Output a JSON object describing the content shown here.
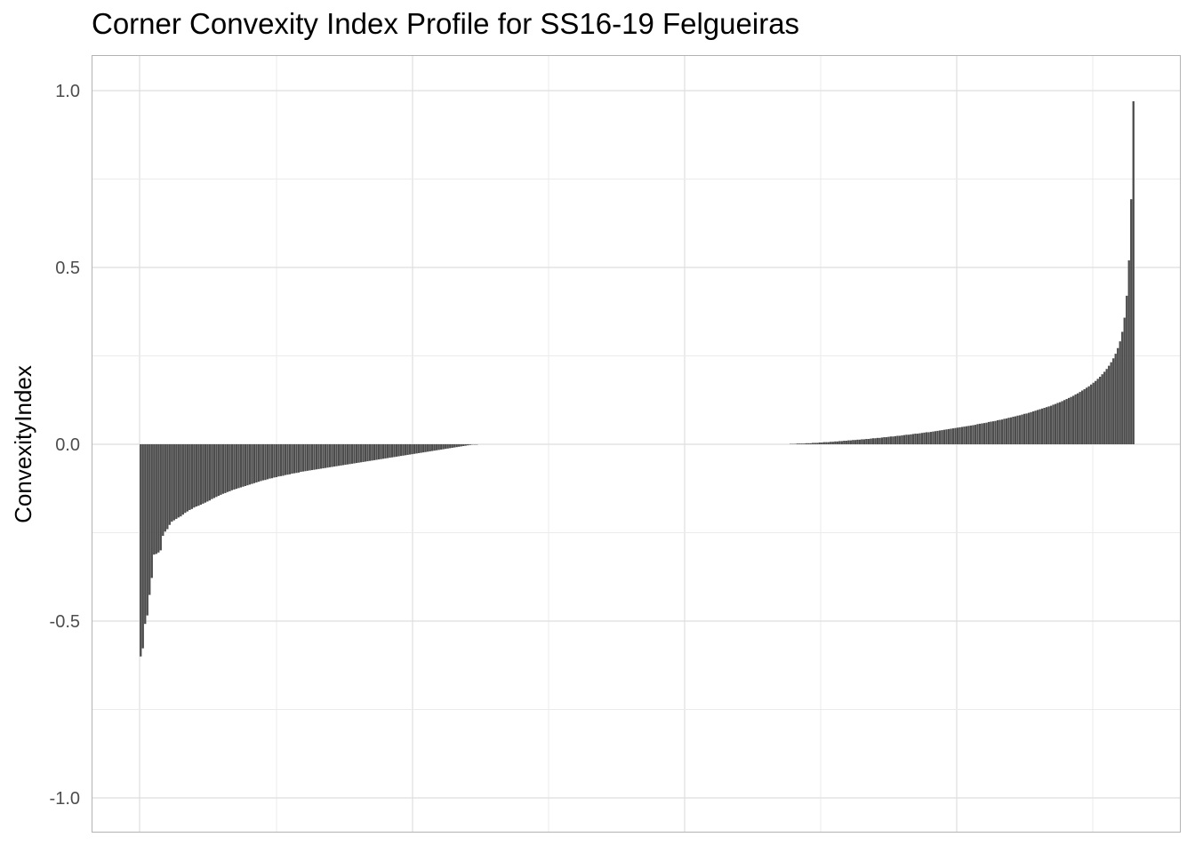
{
  "chart_data": {
    "type": "bar",
    "title": "Corner Convexity Index Profile for SS16-19 Felgueiras",
    "xlabel": "",
    "ylabel": "ConvexityIndex",
    "ylim": [
      -1.1,
      1.1
    ],
    "y_ticks": [
      -1.0,
      -0.5,
      0.0,
      0.5,
      1.0
    ],
    "y_tick_labels": [
      "-1.0",
      "-0.5",
      "0.0",
      "0.5",
      "1.0"
    ],
    "x_tick_labels": [],
    "grid": true,
    "bar_color": "#4d4d4d",
    "n_bars": 466,
    "values": [
      -0.6,
      -0.577,
      -0.508,
      -0.484,
      -0.426,
      -0.378,
      -0.312,
      -0.31,
      -0.306,
      -0.3,
      -0.259,
      -0.247,
      -0.24,
      -0.228,
      -0.219,
      -0.215,
      -0.211,
      -0.207,
      -0.204,
      -0.199,
      -0.194,
      -0.19,
      -0.186,
      -0.183,
      -0.179,
      -0.176,
      -0.174,
      -0.171,
      -0.168,
      -0.165,
      -0.162,
      -0.159,
      -0.155,
      -0.152,
      -0.149,
      -0.146,
      -0.143,
      -0.14,
      -0.138,
      -0.135,
      -0.133,
      -0.13,
      -0.128,
      -0.126,
      -0.124,
      -0.122,
      -0.12,
      -0.118,
      -0.116,
      -0.114,
      -0.112,
      -0.11,
      -0.108,
      -0.106,
      -0.104,
      -0.102,
      -0.101,
      -0.099,
      -0.097,
      -0.096,
      -0.094,
      -0.093,
      -0.091,
      -0.09,
      -0.089,
      -0.087,
      -0.086,
      -0.085,
      -0.083,
      -0.082,
      -0.081,
      -0.08,
      -0.078,
      -0.077,
      -0.076,
      -0.075,
      -0.074,
      -0.073,
      -0.072,
      -0.071,
      -0.07,
      -0.069,
      -0.068,
      -0.067,
      -0.066,
      -0.065,
      -0.064,
      -0.063,
      -0.062,
      -0.061,
      -0.06,
      -0.059,
      -0.058,
      -0.057,
      -0.056,
      -0.055,
      -0.054,
      -0.053,
      -0.052,
      -0.051,
      -0.05,
      -0.049,
      -0.048,
      -0.047,
      -0.046,
      -0.045,
      -0.044,
      -0.043,
      -0.042,
      -0.041,
      -0.04,
      -0.039,
      -0.038,
      -0.037,
      -0.036,
      -0.035,
      -0.034,
      -0.033,
      -0.032,
      -0.031,
      -0.03,
      -0.029,
      -0.028,
      -0.027,
      -0.026,
      -0.025,
      -0.024,
      -0.023,
      -0.022,
      -0.021,
      -0.02,
      -0.019,
      -0.018,
      -0.017,
      -0.016,
      -0.015,
      -0.014,
      -0.013,
      -0.012,
      -0.011,
      -0.01,
      -0.009,
      -0.008,
      -0.007,
      -0.006,
      -0.005,
      -0.004,
      -0.003,
      -0.002,
      -0.001,
      -0.001,
      -0.001,
      0,
      0,
      0,
      0,
      0,
      0,
      0,
      0,
      0,
      0,
      0,
      0,
      0,
      0,
      0,
      0,
      0,
      0,
      0,
      0,
      0,
      0,
      0,
      0,
      0,
      0,
      0,
      0,
      0,
      0,
      0,
      0,
      0,
      0,
      0,
      0,
      0,
      0,
      0,
      0,
      0,
      0,
      0,
      0,
      0,
      0,
      0,
      0,
      0,
      0,
      0,
      0,
      0,
      0,
      0,
      0,
      0,
      0,
      0,
      0,
      0,
      0,
      0,
      0,
      0,
      0,
      0,
      0,
      0,
      0,
      0,
      0,
      0,
      0,
      0,
      0,
      0,
      0,
      0,
      0,
      0,
      0,
      0,
      0,
      0,
      0,
      0,
      0,
      0,
      0,
      0,
      0,
      0,
      0,
      0,
      0,
      0,
      0,
      0,
      0,
      0,
      0,
      0,
      0,
      0,
      0,
      0,
      0,
      0,
      0,
      0,
      0,
      0,
      0,
      0,
      0,
      0,
      0,
      0,
      0,
      0,
      0,
      0,
      0,
      0,
      0,
      0,
      0,
      0,
      0,
      0,
      0,
      0,
      0,
      0,
      0,
      0,
      0,
      0,
      0,
      0.001,
      0.001,
      0.001,
      0.002,
      0.002,
      0.002,
      0.002,
      0.003,
      0.003,
      0.003,
      0.004,
      0.004,
      0.004,
      0.005,
      0.005,
      0.006,
      0.006,
      0.006,
      0.007,
      0.007,
      0.008,
      0.008,
      0.009,
      0.009,
      0.01,
      0.01,
      0.011,
      0.011,
      0.012,
      0.012,
      0.013,
      0.013,
      0.014,
      0.014,
      0.015,
      0.015,
      0.016,
      0.017,
      0.017,
      0.018,
      0.018,
      0.019,
      0.02,
      0.02,
      0.021,
      0.022,
      0.022,
      0.023,
      0.024,
      0.024,
      0.025,
      0.026,
      0.027,
      0.027,
      0.028,
      0.029,
      0.03,
      0.03,
      0.031,
      0.032,
      0.033,
      0.034,
      0.034,
      0.035,
      0.036,
      0.037,
      0.038,
      0.039,
      0.04,
      0.041,
      0.042,
      0.043,
      0.044,
      0.045,
      0.046,
      0.047,
      0.048,
      0.049,
      0.05,
      0.051,
      0.052,
      0.053,
      0.054,
      0.055,
      0.057,
      0.058,
      0.059,
      0.06,
      0.061,
      0.063,
      0.064,
      0.065,
      0.066,
      0.068,
      0.069,
      0.07,
      0.072,
      0.073,
      0.075,
      0.076,
      0.078,
      0.079,
      0.081,
      0.082,
      0.084,
      0.086,
      0.087,
      0.089,
      0.091,
      0.093,
      0.095,
      0.097,
      0.099,
      0.101,
      0.103,
      0.105,
      0.107,
      0.109,
      0.112,
      0.114,
      0.117,
      0.119,
      0.122,
      0.125,
      0.128,
      0.131,
      0.134,
      0.137,
      0.141,
      0.144,
      0.148,
      0.152,
      0.156,
      0.16,
      0.164,
      0.169,
      0.174,
      0.179,
      0.185,
      0.191,
      0.198,
      0.205,
      0.213,
      0.222,
      0.232,
      0.243,
      0.256,
      0.272,
      0.291,
      0.318,
      0.358,
      0.42,
      0.52,
      0.693,
      0.97
    ]
  }
}
